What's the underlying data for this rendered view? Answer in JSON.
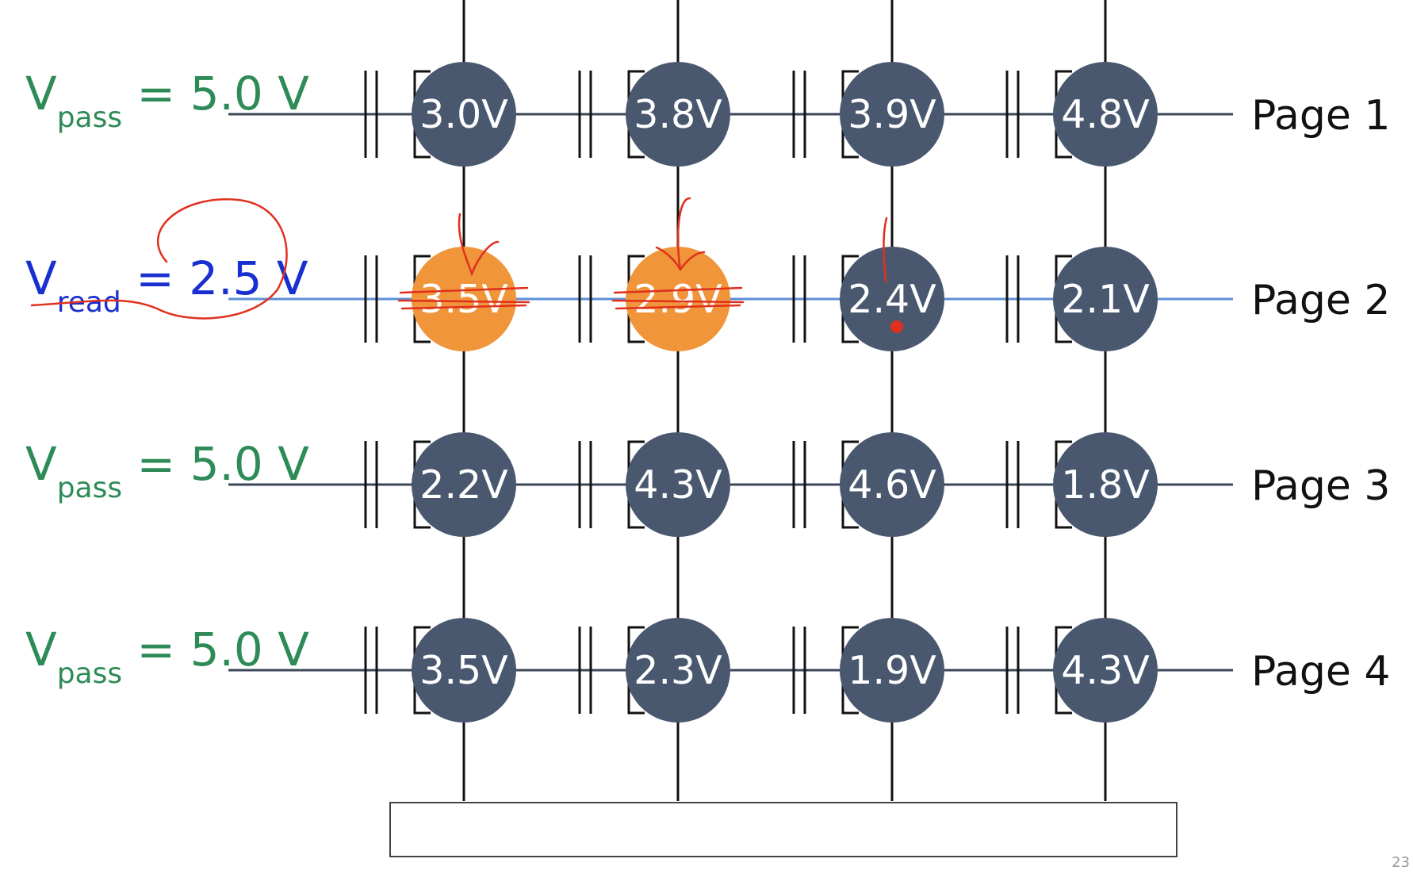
{
  "colors": {
    "line": "#3b4658",
    "cell_fill": "#4a586f",
    "cell_off_fill": "#f0953a",
    "read_line": "#5b8fd6",
    "pass_text": "#2e8b57",
    "read_text": "#1a2fd0",
    "annotation": "#e0301e"
  },
  "rows": [
    {
      "label_main": "V",
      "label_sub": "pass",
      "label_value": " = 5.0 V",
      "kind": "pass",
      "page": "Page 1",
      "cells": [
        {
          "v": "3.0V",
          "state": "on"
        },
        {
          "v": "3.8V",
          "state": "on"
        },
        {
          "v": "3.9V",
          "state": "on"
        },
        {
          "v": "4.8V",
          "state": "on"
        }
      ]
    },
    {
      "label_main": "V",
      "label_sub": "read",
      "label_value": " = 2.5 V",
      "kind": "read",
      "page": "Page 2",
      "cells": [
        {
          "v": "3.5V",
          "state": "off"
        },
        {
          "v": "2.9V",
          "state": "off"
        },
        {
          "v": "2.4V",
          "state": "on"
        },
        {
          "v": "2.1V",
          "state": "on"
        }
      ]
    },
    {
      "label_main": "V",
      "label_sub": "pass",
      "label_value": " = 5.0 V",
      "kind": "pass",
      "page": "Page 3",
      "cells": [
        {
          "v": "2.2V",
          "state": "on"
        },
        {
          "v": "4.3V",
          "state": "on"
        },
        {
          "v": "4.6V",
          "state": "on"
        },
        {
          "v": "1.8V",
          "state": "on"
        }
      ]
    },
    {
      "label_main": "V",
      "label_sub": "pass",
      "label_value": " = 5.0 V",
      "kind": "pass",
      "page": "Page 4",
      "cells": [
        {
          "v": "3.5V",
          "state": "on"
        },
        {
          "v": "2.3V",
          "state": "on"
        },
        {
          "v": "1.9V",
          "state": "on"
        },
        {
          "v": "4.3V",
          "state": "on"
        }
      ]
    }
  ],
  "slide_number": "23"
}
